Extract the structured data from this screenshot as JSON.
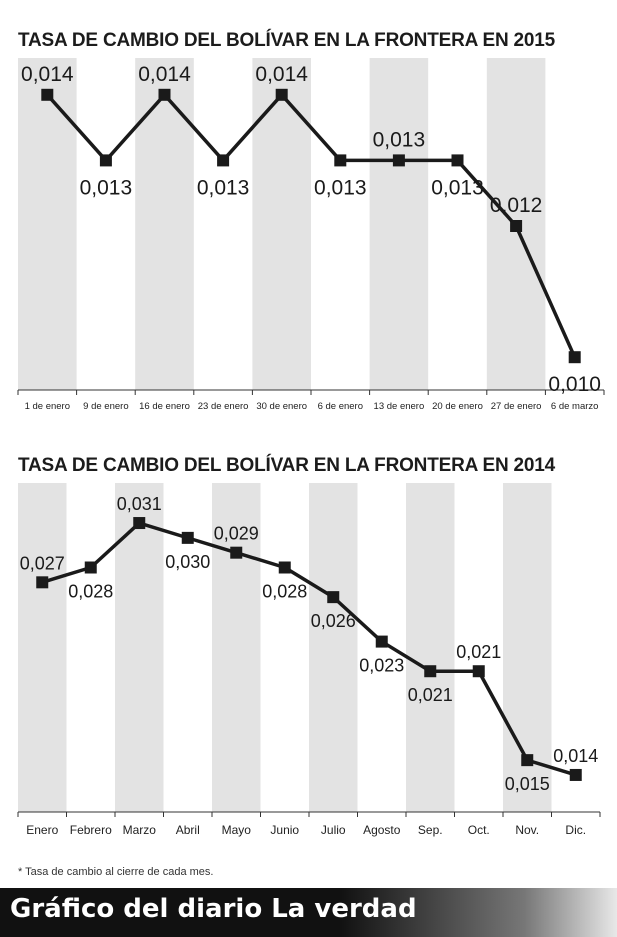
{
  "chart_data": [
    {
      "type": "line",
      "title": "TASA DE CAMBIO DEL BOLÍVAR EN LA FRONTERA EN 2015",
      "categories": [
        "1 de enero",
        "9 de enero",
        "16 de enero",
        "23 de enero",
        "30 de enero",
        "6 de enero",
        "13 de enero",
        "20 de enero",
        "27 de enero",
        "6 de marzo"
      ],
      "values": [
        0.014,
        0.013,
        0.014,
        0.013,
        0.014,
        0.013,
        0.013,
        0.013,
        0.012,
        0.01
      ],
      "labels": [
        "0,014",
        "0,013",
        "0,014",
        "0,013",
        "0,014",
        "0,013",
        "0,013",
        "0,013",
        "0,012",
        "0,010"
      ],
      "label_pos": [
        "above",
        "below",
        "above",
        "below",
        "above",
        "below",
        "above",
        "below",
        "above",
        "below"
      ],
      "ylim": [
        0.0095,
        0.0145
      ],
      "grid": "alternating vertical bands"
    },
    {
      "type": "line",
      "title": "TASA DE CAMBIO DEL BOLÍVAR EN LA FRONTERA EN 2014",
      "categories": [
        "Enero",
        "Febrero",
        "Marzo",
        "Abril",
        "Mayo",
        "Junio",
        "Julio",
        "Agosto",
        "Sep.",
        "Oct.",
        "Nov.",
        "Dic."
      ],
      "values": [
        0.027,
        0.028,
        0.031,
        0.03,
        0.029,
        0.028,
        0.026,
        0.023,
        0.021,
        0.021,
        0.015,
        0.014
      ],
      "labels": [
        "0,027",
        "0,028",
        "0,031",
        "0,030",
        "0,029",
        "0,028",
        "0,026",
        "0,023",
        "0,021",
        "0,021",
        "0,015",
        "0,014"
      ],
      "label_pos": [
        "above",
        "below",
        "above",
        "below",
        "above",
        "below",
        "below",
        "below",
        "below",
        "above",
        "below",
        "above"
      ],
      "ylim": [
        0.0115,
        0.0335
      ],
      "grid": "alternating vertical bands"
    }
  ],
  "footnote": "* Tasa de cambio al cierre de cada mes.",
  "source": "Gráfico del diario La verdad",
  "colors": {
    "band": "#e3e3e3",
    "line": "#1a1a1a",
    "source_bar": "#111111",
    "source_text": "#ffffff"
  }
}
